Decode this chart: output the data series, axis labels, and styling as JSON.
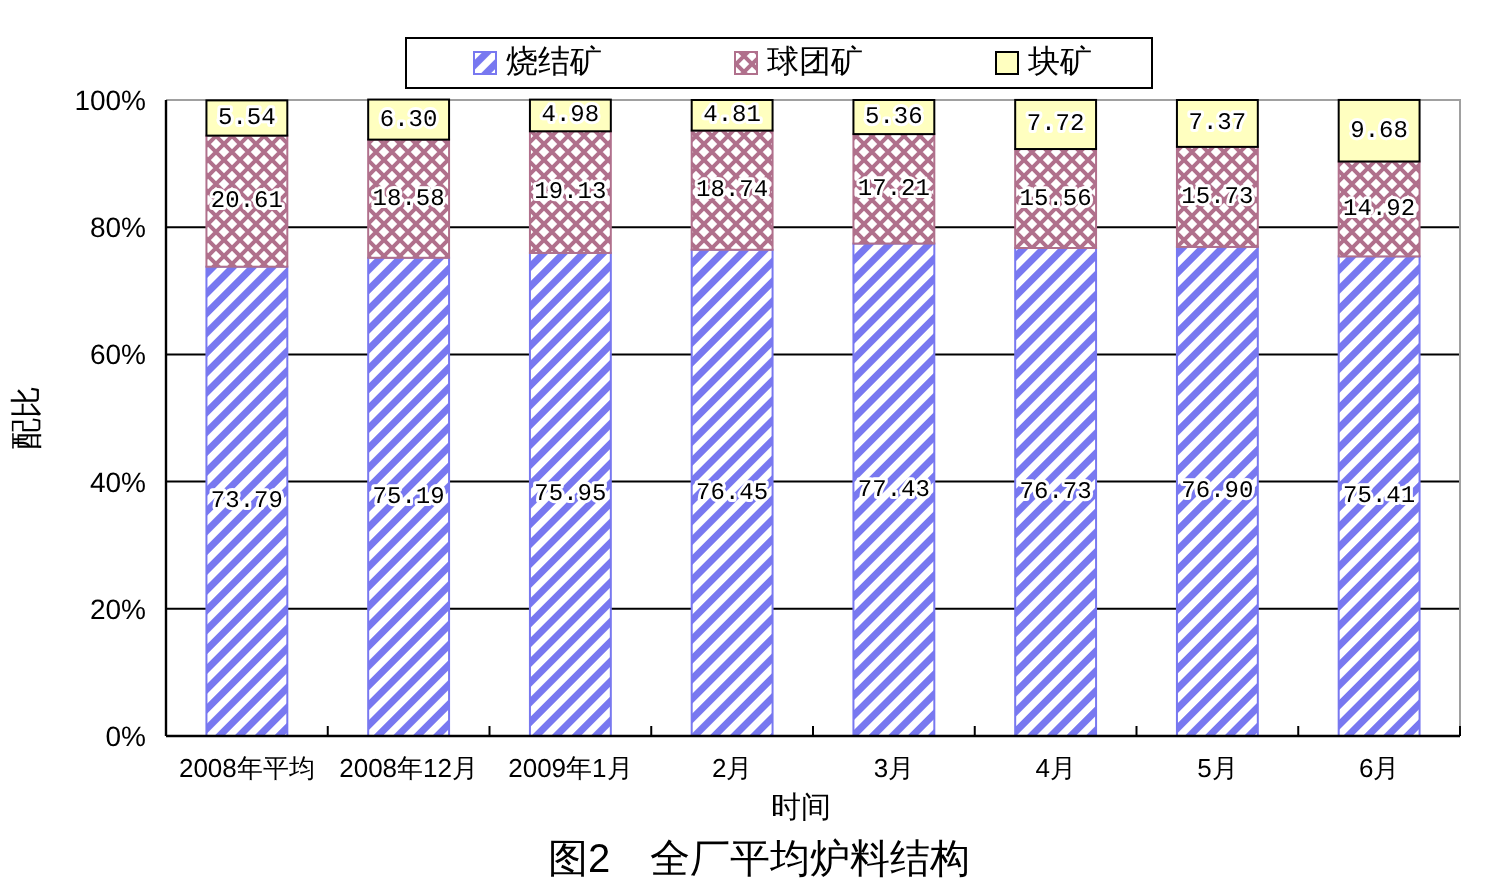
{
  "chart_data": {
    "type": "bar",
    "stacked": true,
    "title": "图2　全厂平均炉料结构",
    "xlabel": "时间",
    "ylabel": "配比",
    "categories": [
      "2008年平均",
      "2008年12月",
      "2009年1月",
      "2月",
      "3月",
      "4月",
      "5月",
      "6月"
    ],
    "series": [
      {
        "name": "烧结矿",
        "color": "#7878f0",
        "values": [
          73.79,
          75.19,
          75.95,
          76.45,
          77.43,
          76.73,
          76.9,
          75.41
        ],
        "value_labels": [
          "73.79",
          "75.19",
          "75.95",
          "76.45",
          "77.43",
          "76.73",
          "76.90",
          "75.41"
        ]
      },
      {
        "name": "球团矿",
        "color": "#b0708c",
        "values": [
          20.61,
          18.58,
          19.13,
          18.74,
          17.21,
          15.56,
          15.73,
          14.92
        ],
        "value_labels": [
          "20.61",
          "18.58",
          "19.13",
          "18.74",
          "17.21",
          "15.56",
          "15.73",
          "14.92"
        ]
      },
      {
        "name": "块矿",
        "color": "#ffffc0",
        "values": [
          5.54,
          6.3,
          4.98,
          4.81,
          5.36,
          7.72,
          7.37,
          9.68
        ],
        "value_labels": [
          "5.54",
          "6.30",
          "4.98",
          "4.81",
          "5.36",
          "7.72",
          "7.37",
          "9.68"
        ]
      }
    ],
    "ylim": [
      0,
      100
    ],
    "yticks": [
      {
        "value": 0,
        "label": "0%"
      },
      {
        "value": 20,
        "label": "20%"
      },
      {
        "value": 40,
        "label": "40%"
      },
      {
        "value": 60,
        "label": "60%"
      },
      {
        "value": 80,
        "label": "80%"
      },
      {
        "value": 100,
        "label": "100%"
      }
    ],
    "grid": "y",
    "legend": "top"
  }
}
